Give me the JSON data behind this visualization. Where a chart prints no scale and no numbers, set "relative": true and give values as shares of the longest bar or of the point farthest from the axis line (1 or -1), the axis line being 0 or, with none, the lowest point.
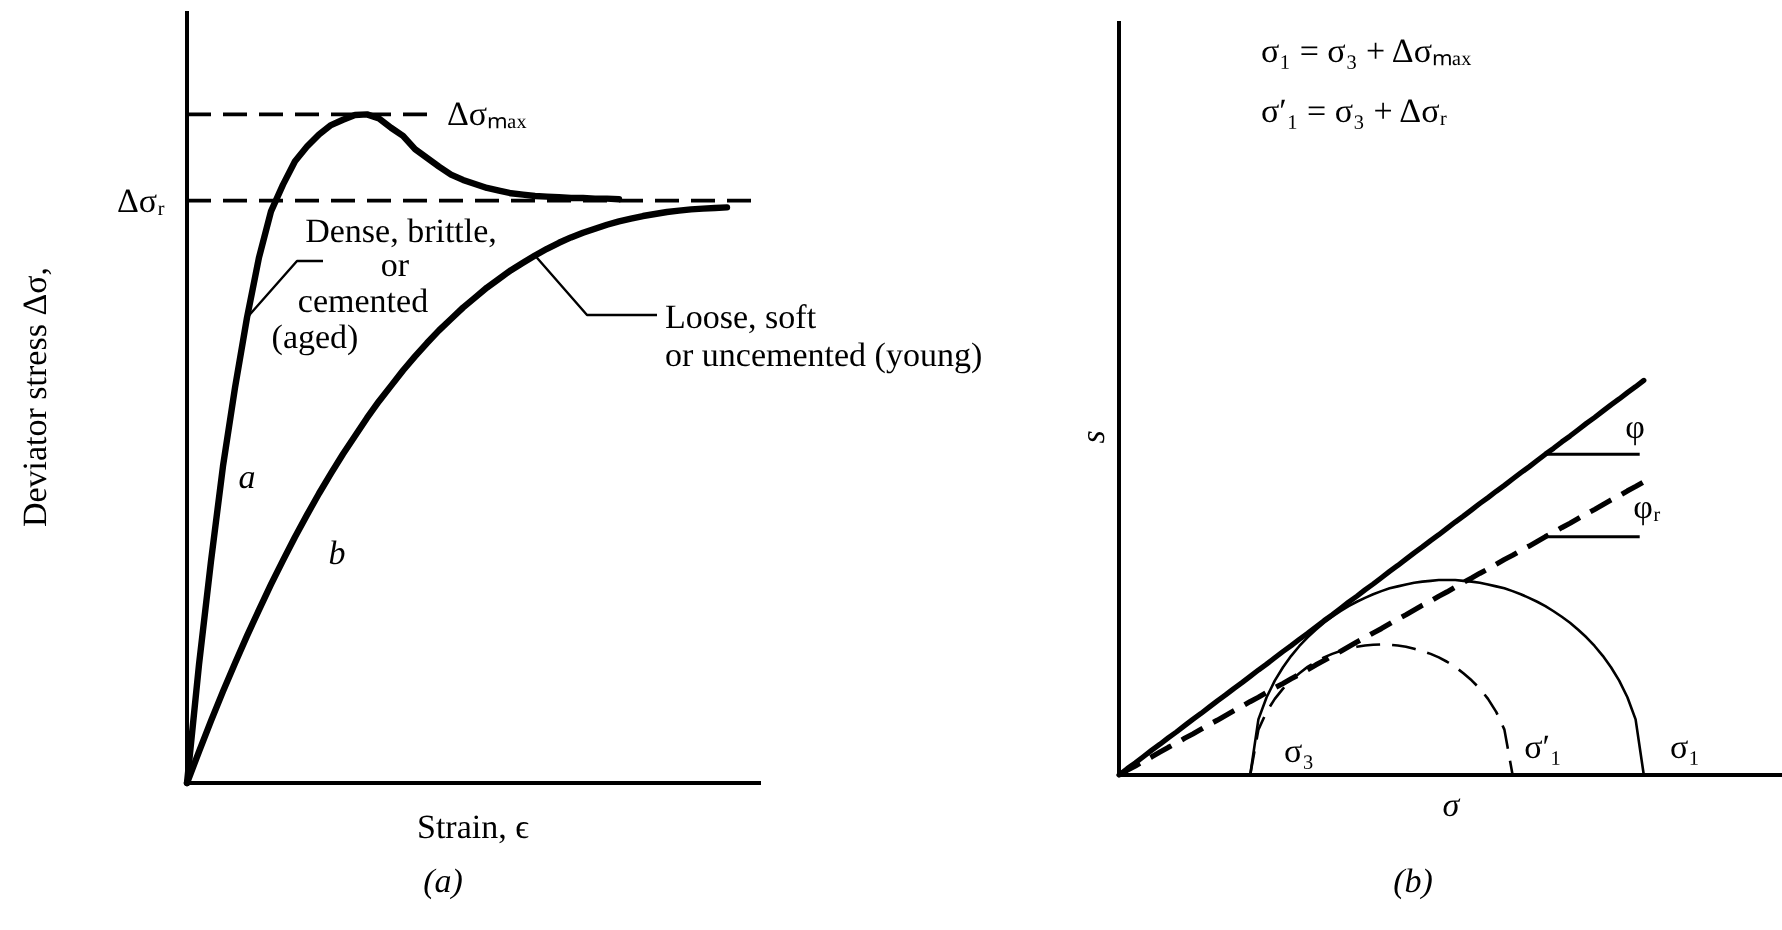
{
  "chart_data": [
    {
      "type": "line",
      "relative": true,
      "title": "(a)",
      "xlabel": "Strain, ϵ",
      "ylabel": "Deviator stress Δσ,",
      "categories": [
        null,
        null,
        null,
        null,
        null,
        null,
        null,
        null,
        null,
        null,
        null,
        null,
        null,
        null,
        null,
        null,
        null,
        null,
        null,
        null,
        null,
        null,
        null,
        null,
        null,
        null,
        null,
        null,
        null,
        null,
        null,
        null,
        null,
        null,
        null,
        null,
        null,
        null,
        null,
        null,
        null,
        null,
        null,
        null,
        null,
        null,
        null,
        null
      ],
      "series": [
        {
          "name": "a",
          "color": "#000000",
          "line_style": "solid",
          "values": [
            0,
            0.177,
            0.332,
            0.474,
            0.591,
            0.696,
            0.786,
            0.855,
            0.895,
            0.93,
            0.952,
            0.97,
            0.984,
            0.992,
            0.999,
            1.0,
            0.994,
            0.98,
            0.968,
            0.948,
            0.935,
            0.922,
            0.91,
            0.902,
            0.896,
            0.89,
            0.886,
            0.882,
            0.88,
            0.878,
            0.877,
            0.876,
            0.875,
            0.875,
            0.874,
            0.874,
            0.873,
            null,
            null,
            null,
            null,
            null,
            null,
            null,
            null,
            null,
            null,
            null
          ]
        },
        {
          "name": "b",
          "color": "#000000",
          "line_style": "solid",
          "values": [
            0,
            0.047,
            0.093,
            0.137,
            0.179,
            0.22,
            0.259,
            0.297,
            0.333,
            0.368,
            0.401,
            0.433,
            0.463,
            0.492,
            0.519,
            0.546,
            0.571,
            0.594,
            0.617,
            0.638,
            0.658,
            0.677,
            0.694,
            0.711,
            0.726,
            0.741,
            0.754,
            0.767,
            0.778,
            0.789,
            0.799,
            0.808,
            0.816,
            0.823,
            0.829,
            0.835,
            0.84,
            0.844,
            0.848,
            0.851,
            0.854,
            0.856,
            0.858,
            0.859,
            0.86,
            0.861,
            null,
            null
          ]
        }
      ],
      "ref_lines": [
        {
          "axis": "y",
          "value": 1.0,
          "label": "Δσₘₐₓ",
          "line_style": "dashed",
          "color": "#000000"
        },
        {
          "axis": "y",
          "value": 0.871,
          "label": "Δσᵣ",
          "line_style": "dashed",
          "color": "#000000"
        }
      ],
      "annotations": [
        "Dense, brittle,\nor\ncemented\n(aged)",
        "Loose, soft\nor uncemented (young)"
      ]
    },
    {
      "type": "line",
      "relative": true,
      "title": "(b)",
      "xlabel": "σ",
      "ylabel": "s",
      "categories": [
        null,
        null,
        null,
        null,
        null,
        null,
        null,
        null,
        null,
        null,
        null,
        null,
        null,
        null,
        null,
        null,
        null,
        null,
        null,
        null,
        null,
        null,
        null,
        null,
        null,
        null,
        null,
        null,
        null,
        null,
        null,
        null,
        null,
        null,
        null,
        null,
        null,
        null,
        null,
        null,
        null,
        null,
        null,
        null,
        null,
        null,
        null,
        null,
        null,
        null,
        null,
        null,
        null,
        null,
        null,
        null,
        null,
        null,
        null,
        null,
        null,
        null,
        null,
        null,
        null,
        null,
        null,
        null,
        null,
        null,
        null,
        null,
        null,
        null,
        null,
        null,
        null,
        null,
        null,
        null,
        null
      ],
      "series": [
        {
          "color": "#000000",
          "line_style": "solid",
          "values": [
            0,
            0.016,
            0.031,
            0.047,
            0.063,
            0.078,
            0.094,
            0.109,
            0.125,
            0.141,
            0.156,
            0.172,
            0.188,
            0.203,
            0.219,
            0.234,
            0.25,
            0.266,
            0.281,
            0.297,
            0.313,
            0.328,
            0.344,
            0.359,
            0.375,
            0.391,
            0.406,
            0.422,
            0.438,
            0.453,
            0.469,
            0.484,
            0.5,
            0.516,
            0.531,
            0.547,
            0.563,
            0.578,
            0.594,
            0.609,
            0.625,
            0.641,
            0.656,
            0.672,
            0.688,
            0.703,
            0.719,
            0.734,
            0.75,
            0.766,
            0.781,
            0.797,
            0.813,
            0.828,
            0.844,
            0.859,
            0.875,
            0.891,
            0.906,
            0.922,
            0.938,
            0.953,
            0.969,
            0.984,
            1.0,
            null,
            null,
            null,
            null,
            null,
            null,
            null,
            null,
            null,
            null,
            null,
            null,
            null,
            null,
            null,
            null
          ]
        },
        {
          "color": "#000000",
          "line_style": "dashed",
          "values": [
            0,
            0.012,
            0.023,
            0.035,
            0.046,
            0.058,
            0.07,
            0.081,
            0.093,
            0.104,
            0.116,
            0.128,
            0.139,
            0.151,
            0.163,
            0.174,
            0.186,
            0.197,
            0.209,
            0.221,
            0.232,
            0.244,
            0.255,
            0.267,
            0.279,
            0.29,
            0.302,
            0.313,
            0.325,
            0.337,
            0.348,
            0.36,
            0.371,
            0.383,
            0.395,
            0.406,
            0.418,
            0.43,
            0.441,
            0.453,
            0.464,
            0.476,
            0.488,
            0.499,
            0.511,
            0.522,
            0.534,
            0.546,
            0.557,
            0.569,
            0.58,
            0.592,
            0.604,
            0.615,
            0.627,
            0.638,
            0.65,
            0.662,
            0.673,
            0.685,
            0.697,
            0.708,
            0.72,
            0.731,
            0.743,
            null,
            null,
            null,
            null,
            null,
            null,
            null,
            null,
            null,
            null,
            null,
            null,
            null,
            null,
            null,
            null
          ]
        },
        {
          "color": "#000000",
          "line_style": "solid",
          "values": [
            null,
            null,
            null,
            null,
            null,
            null,
            null,
            null,
            null,
            null,
            null,
            null,
            null,
            null,
            null,
            null,
            0,
            0.141,
            0.197,
            0.239,
            0.273,
            0.302,
            0.327,
            0.349,
            0.368,
            0.386,
            0.401,
            0.415,
            0.428,
            0.439,
            0.449,
            0.458,
            0.466,
            0.473,
            0.478,
            0.483,
            0.487,
            0.49,
            0.492,
            0.494,
            0.494,
            0.494,
            0.492,
            0.49,
            0.487,
            0.483,
            0.478,
            0.473,
            0.466,
            0.458,
            0.449,
            0.439,
            0.428,
            0.415,
            0.401,
            0.386,
            0.368,
            0.349,
            0.327,
            0.302,
            0.273,
            0.239,
            0.197,
            0.141,
            0,
            null,
            null,
            null,
            null,
            null,
            null,
            null,
            null,
            null,
            null,
            null,
            null,
            null,
            null,
            null,
            null
          ]
        },
        {
          "color": "#000000",
          "line_style": "dashed",
          "values": [
            null,
            null,
            null,
            null,
            null,
            null,
            null,
            null,
            null,
            null,
            null,
            null,
            null,
            null,
            null,
            null,
            0,
            0.115,
            0.16,
            0.193,
            0.219,
            0.24,
            0.258,
            0.274,
            0.287,
            0.298,
            0.307,
            0.314,
            0.32,
            0.325,
            0.328,
            0.33,
            0.331,
            0.33,
            0.328,
            0.325,
            0.32,
            0.314,
            0.307,
            0.298,
            0.287,
            0.274,
            0.258,
            0.24,
            0.219,
            0.193,
            0.16,
            0.115,
            0,
            null,
            null,
            null,
            null,
            null,
            null,
            null,
            null,
            null,
            null,
            null,
            null,
            null,
            null,
            null,
            null,
            null,
            null,
            null,
            null,
            null,
            null,
            null,
            null,
            null,
            null,
            null,
            null,
            null,
            null,
            null,
            null
          ]
        }
      ],
      "annotations": [
        "σ₁ = σ₃ + Δσₘₐₓ",
        "σ′₁ = σ₃ + Δσᵣ",
        "σ₃",
        "σ′₁",
        "σ₁",
        "φ",
        "φᵣ"
      ]
    }
  ]
}
